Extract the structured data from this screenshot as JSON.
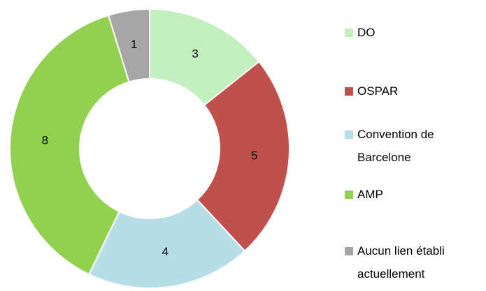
{
  "chart_data": {
    "type": "donut",
    "categories": [
      "DO",
      "OSPAR",
      "Convention de Barcelone",
      "AMP",
      "Aucun lien établi actuellement"
    ],
    "values": [
      3,
      5,
      4,
      8,
      1
    ],
    "colors": [
      "#c3efbf",
      "#c0504d",
      "#b7dde8",
      "#92d050",
      "#a6a6a6"
    ],
    "legend": "right"
  }
}
